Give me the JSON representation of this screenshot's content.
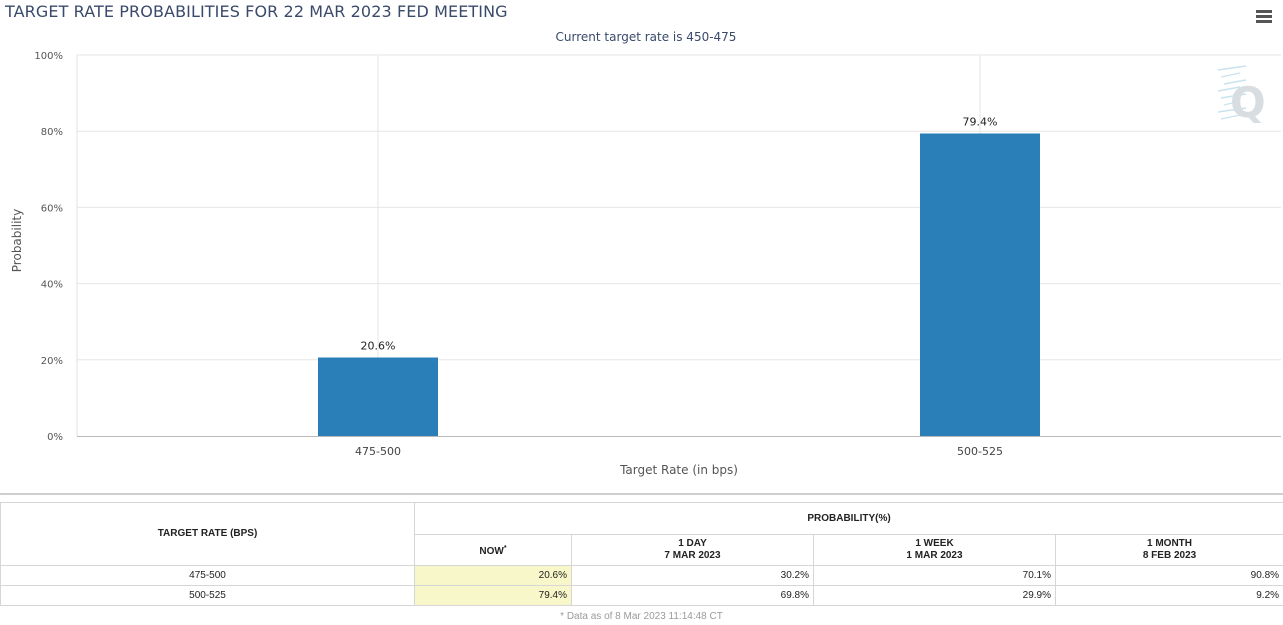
{
  "header": {
    "title": "TARGET RATE PROBABILITIES FOR 22 MAR 2023 FED MEETING",
    "menu_icon": "hamburger-icon"
  },
  "chart_data": {
    "type": "bar",
    "title": "TARGET RATE PROBABILITIES FOR 22 MAR 2023 FED MEETING",
    "subtitle": "Current target rate is 450-475",
    "xlabel": "Target Rate (in bps)",
    "ylabel": "Probability",
    "categories": [
      "475-500",
      "500-525"
    ],
    "values": [
      20.6,
      79.4
    ],
    "data_labels": [
      "20.6%",
      "79.4%"
    ],
    "ylim": [
      0,
      100
    ],
    "yticks": [
      "0%",
      "20%",
      "40%",
      "60%",
      "80%",
      "100%"
    ],
    "ytick_values": [
      0,
      20,
      40,
      60,
      80,
      100
    ],
    "grid": true,
    "legend": "none",
    "bar_color": "#2a7fb8",
    "watermark": "Q"
  },
  "table": {
    "target_header": "TARGET RATE (BPS)",
    "prob_header": "PROBABILITY(%)",
    "columns": [
      {
        "line1": "NOW",
        "line2": "",
        "note": "*"
      },
      {
        "line1": "1 DAY",
        "line2": "7 MAR 2023"
      },
      {
        "line1": "1 WEEK",
        "line2": "1 MAR 2023"
      },
      {
        "line1": "1 MONTH",
        "line2": "8 FEB 2023"
      }
    ],
    "rows": [
      {
        "rate": "475-500",
        "values": [
          "20.6%",
          "30.2%",
          "70.1%",
          "90.8%"
        ]
      },
      {
        "rate": "500-525",
        "values": [
          "79.4%",
          "69.8%",
          "29.9%",
          "9.2%"
        ]
      }
    ],
    "now_highlight_color": "#f8f7c9"
  },
  "footnote": "* Data as of 8 Mar 2023 11:14:48 CT"
}
